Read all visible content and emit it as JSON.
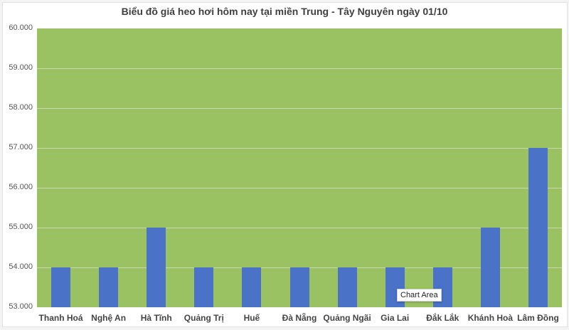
{
  "chart_data": {
    "type": "bar",
    "title": "Biểu đồ giá heo hơi hôm nay tại miền Trung - Tây Nguyên ngày 01/10",
    "xlabel": "",
    "ylabel": "",
    "categories": [
      "Thanh Hoá",
      "Nghệ An",
      "Hà Tĩnh",
      "Quảng Trị",
      "Huế",
      "Đà Nẵng",
      "Quảng Ngãi",
      "Gia Lai",
      "Đắk Lắk",
      "Khánh Hoà",
      "Lâm Đồng"
    ],
    "values": [
      54000,
      54000,
      55000,
      54000,
      54000,
      54000,
      54000,
      54000,
      54000,
      55000,
      57000
    ],
    "ylim": [
      53000,
      60000
    ],
    "yticks": [
      "53.000",
      "54.000",
      "55.000",
      "56.000",
      "57.000",
      "58.000",
      "59.000",
      "60.000"
    ],
    "grid": true,
    "legend": "none",
    "colors": {
      "bar": "#4a72c6",
      "plot_background": "#9bc262",
      "gridline": "#c4dca0"
    }
  },
  "tooltip": {
    "label": "Chart Area"
  }
}
